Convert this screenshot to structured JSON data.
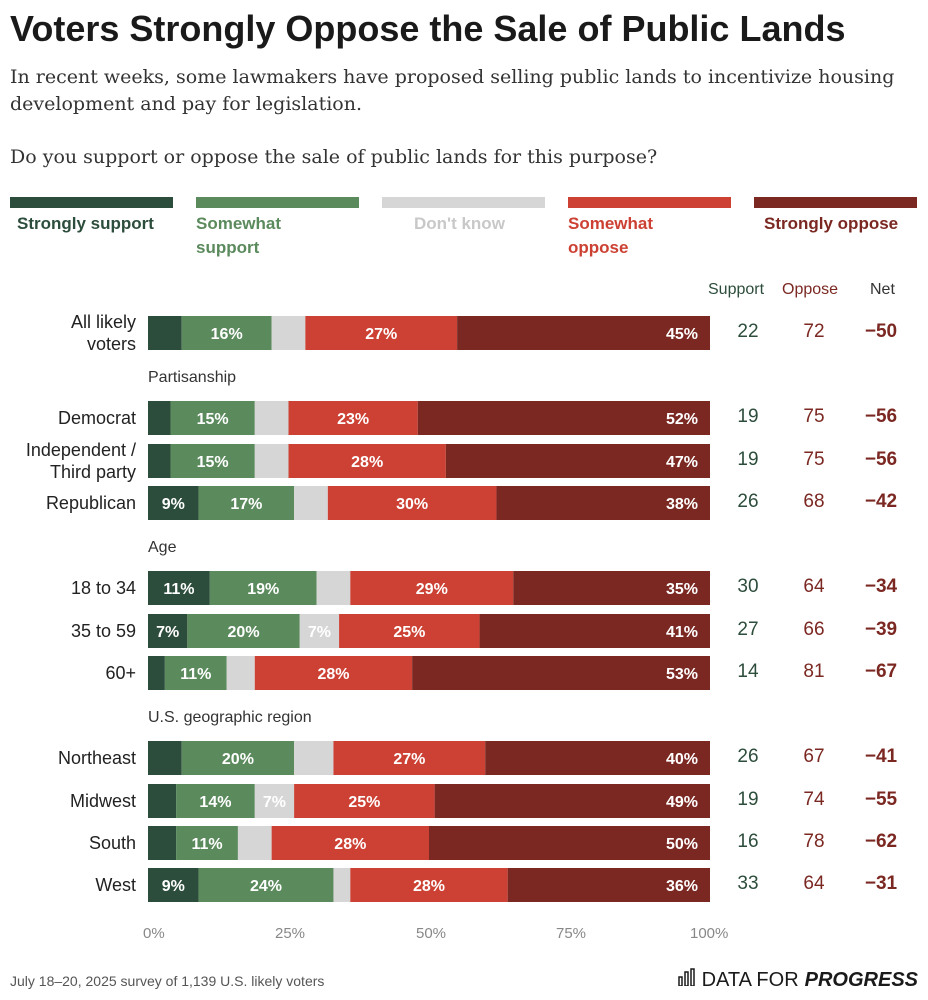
{
  "title": "Voters Strongly Oppose the Sale of Public Lands",
  "subtitle": "In recent weeks, some lawmakers have proposed selling public lands to incentivize housing development and pay for legislation.",
  "question": "Do you support or oppose the sale of public lands for this purpose?",
  "legend": [
    {
      "label": "Strongly support",
      "color": "#2d4d3c"
    },
    {
      "label": "Somewhat support",
      "color": "#5b8a5d"
    },
    {
      "label": "Don't know",
      "color": "#d6d6d6"
    },
    {
      "label": "Somewhat oppose",
      "color": "#cc4133"
    },
    {
      "label": "Strongly oppose",
      "color": "#7b2822"
    }
  ],
  "column_headers": {
    "support": "Support",
    "oppose": "Oppose",
    "net": "Net"
  },
  "groups": {
    "partisanship": "Partisanship",
    "age": "Age",
    "region": "U.S. geographic region"
  },
  "footer": "July 18–20, 2025 survey of 1,139 U.S. likely voters",
  "brand": {
    "prefix": "DATA FOR",
    "name": "PROGRESS"
  },
  "chart_data": {
    "type": "bar",
    "orientation": "horizontal-stacked-100",
    "title": "Voters Strongly Oppose the Sale of Public Lands",
    "series_names": [
      "Strongly support",
      "Somewhat support",
      "Don't know",
      "Somewhat oppose",
      "Strongly oppose"
    ],
    "x_ticks": [
      "0%",
      "25%",
      "50%",
      "75%",
      "100%"
    ],
    "xlim": [
      0,
      100
    ],
    "rows": [
      {
        "label": "All likely voters",
        "values": [
          6,
          16,
          6,
          27,
          45
        ],
        "labels": [
          "",
          "16%",
          "",
          "27%",
          "45%"
        ],
        "support": "22",
        "oppose": "72",
        "net": "−50"
      },
      {
        "label": "Democrat",
        "values": [
          4,
          15,
          6,
          23,
          52
        ],
        "labels": [
          "",
          "15%",
          "",
          "23%",
          "52%"
        ],
        "support": "19",
        "oppose": "75",
        "net": "−56"
      },
      {
        "label": "Independent / Third party",
        "values": [
          4,
          15,
          6,
          28,
          47
        ],
        "labels": [
          "",
          "15%",
          "",
          "28%",
          "47%"
        ],
        "support": "19",
        "oppose": "75",
        "net": "−56"
      },
      {
        "label": "Republican",
        "values": [
          9,
          17,
          6,
          30,
          38
        ],
        "labels": [
          "9%",
          "17%",
          "",
          "30%",
          "38%"
        ],
        "support": "26",
        "oppose": "68",
        "net": "−42"
      },
      {
        "label": "18 to 34",
        "values": [
          11,
          19,
          6,
          29,
          35
        ],
        "labels": [
          "11%",
          "19%",
          "",
          "29%",
          "35%"
        ],
        "support": "30",
        "oppose": "64",
        "net": "−34"
      },
      {
        "label": "35 to 59",
        "values": [
          7,
          20,
          7,
          25,
          41
        ],
        "labels": [
          "7%",
          "20%",
          "7%",
          "25%",
          "41%"
        ],
        "support": "27",
        "oppose": "66",
        "net": "−39"
      },
      {
        "label": "60+",
        "values": [
          3,
          11,
          5,
          28,
          53
        ],
        "labels": [
          "",
          "11%",
          "",
          "28%",
          "53%"
        ],
        "support": "14",
        "oppose": "81",
        "net": "−67"
      },
      {
        "label": "Northeast",
        "values": [
          6,
          20,
          7,
          27,
          40
        ],
        "labels": [
          "",
          "20%",
          "",
          "27%",
          "40%"
        ],
        "support": "26",
        "oppose": "67",
        "net": "−41"
      },
      {
        "label": "Midwest",
        "values": [
          5,
          14,
          7,
          25,
          49
        ],
        "labels": [
          "",
          "14%",
          "7%",
          "25%",
          "49%"
        ],
        "support": "19",
        "oppose": "74",
        "net": "−55"
      },
      {
        "label": "South",
        "values": [
          5,
          11,
          6,
          28,
          50
        ],
        "labels": [
          "",
          "11%",
          "",
          "28%",
          "50%"
        ],
        "support": "16",
        "oppose": "78",
        "net": "−62"
      },
      {
        "label": "West",
        "values": [
          9,
          24,
          3,
          28,
          36
        ],
        "labels": [
          "9%",
          "24%",
          "",
          "28%",
          "36%"
        ],
        "support": "33",
        "oppose": "64",
        "net": "−31"
      }
    ]
  }
}
